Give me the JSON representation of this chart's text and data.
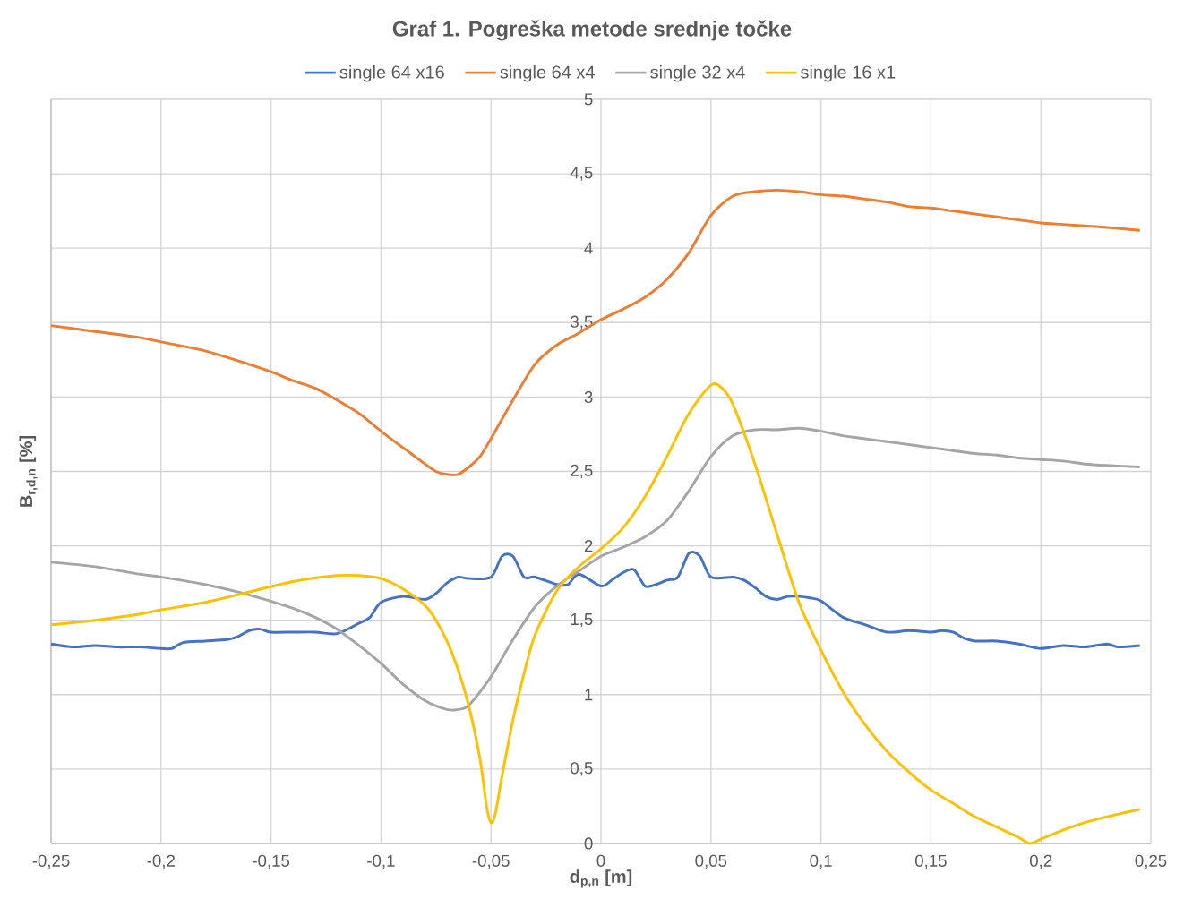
{
  "chart_data": {
    "type": "line",
    "title": "**Graf 1. Pogreška metode srednje točke**",
    "xlabel": "**d$_{p,n}$ [m]**",
    "ylabel": "**B$_{r,d,n}$ [%]**",
    "legend": "top",
    "grid": true,
    "xlim": [
      -0.25,
      0.25
    ],
    "ylim": [
      0,
      5
    ],
    "xticks": [
      {
        "value": -0.25,
        "label": "-0,25"
      },
      {
        "value": -0.2,
        "label": "-0,2"
      },
      {
        "value": -0.15,
        "label": "-0,15"
      },
      {
        "value": -0.1,
        "label": "-0,1"
      },
      {
        "value": -0.05,
        "label": "-0,05"
      },
      0,
      {
        "value": 0.05,
        "label": "0,05"
      },
      {
        "value": 0.1,
        "label": "0,1"
      },
      {
        "value": 0.15,
        "label": "0,15"
      },
      {
        "value": 0.2,
        "label": "0,2"
      },
      {
        "value": 0.25,
        "label": "0,25"
      }
    ],
    "yticks": [
      0,
      {
        "value": 0.5,
        "label": "0,5"
      },
      1,
      {
        "value": 1.5,
        "label": "1,5"
      },
      2,
      {
        "value": 2.5,
        "label": "2,5"
      },
      3,
      {
        "value": 3.5,
        "label": "3,5"
      },
      4,
      {
        "value": 4.5,
        "label": "4,5"
      },
      5
    ],
    "series": [
      {
        "name": "single 64 x16",
        "color": "#4472c4",
        "x": [
          -0.25,
          -0.24,
          -0.23,
          -0.22,
          -0.21,
          -0.2,
          -0.195,
          -0.19,
          -0.18,
          -0.17,
          -0.165,
          -0.16,
          -0.155,
          -0.15,
          -0.14,
          -0.13,
          -0.12,
          -0.11,
          -0.105,
          -0.1,
          -0.09,
          -0.08,
          -0.075,
          -0.07,
          -0.065,
          -0.06,
          -0.05,
          -0.045,
          -0.04,
          -0.035,
          -0.03,
          -0.02,
          -0.015,
          -0.01,
          0,
          0.005,
          0.01,
          0.015,
          0.02,
          0.025,
          0.03,
          0.035,
          0.04,
          0.045,
          0.05,
          0.06,
          0.065,
          0.07,
          0.075,
          0.08,
          0.085,
          0.09,
          0.095,
          0.1,
          0.11,
          0.12,
          0.13,
          0.14,
          0.15,
          0.155,
          0.16,
          0.165,
          0.17,
          0.18,
          0.19,
          0.2,
          0.21,
          0.22,
          0.23,
          0.235,
          0.245
        ],
        "values": [
          1.34,
          1.32,
          1.33,
          1.32,
          1.32,
          1.31,
          1.31,
          1.35,
          1.36,
          1.37,
          1.39,
          1.43,
          1.44,
          1.42,
          1.42,
          1.42,
          1.41,
          1.48,
          1.52,
          1.62,
          1.66,
          1.64,
          1.68,
          1.75,
          1.79,
          1.78,
          1.79,
          1.93,
          1.93,
          1.79,
          1.79,
          1.74,
          1.74,
          1.81,
          1.73,
          1.77,
          1.82,
          1.84,
          1.73,
          1.74,
          1.77,
          1.79,
          1.95,
          1.93,
          1.79,
          1.79,
          1.77,
          1.72,
          1.66,
          1.64,
          1.66,
          1.66,
          1.65,
          1.63,
          1.52,
          1.47,
          1.42,
          1.43,
          1.42,
          1.43,
          1.42,
          1.38,
          1.36,
          1.36,
          1.34,
          1.31,
          1.33,
          1.32,
          1.34,
          1.32,
          1.33
        ]
      },
      {
        "name": "single 64 x4",
        "color": "#ed7d31",
        "x": [
          -0.25,
          -0.23,
          -0.21,
          -0.2,
          -0.18,
          -0.16,
          -0.15,
          -0.14,
          -0.13,
          -0.12,
          -0.11,
          -0.1,
          -0.09,
          -0.08,
          -0.075,
          -0.07,
          -0.065,
          -0.06,
          -0.055,
          -0.05,
          -0.04,
          -0.03,
          -0.02,
          -0.01,
          0,
          0.01,
          0.02,
          0.03,
          0.04,
          0.05,
          0.06,
          0.07,
          0.08,
          0.09,
          0.1,
          0.11,
          0.12,
          0.13,
          0.14,
          0.15,
          0.16,
          0.17,
          0.18,
          0.19,
          0.2,
          0.21,
          0.22,
          0.23,
          0.245
        ],
        "values": [
          3.48,
          3.44,
          3.4,
          3.37,
          3.31,
          3.22,
          3.17,
          3.11,
          3.06,
          2.98,
          2.89,
          2.77,
          2.66,
          2.55,
          2.5,
          2.48,
          2.48,
          2.53,
          2.6,
          2.72,
          2.98,
          3.22,
          3.35,
          3.43,
          3.52,
          3.59,
          3.67,
          3.79,
          3.97,
          4.22,
          4.35,
          4.38,
          4.39,
          4.38,
          4.36,
          4.35,
          4.33,
          4.31,
          4.28,
          4.27,
          4.25,
          4.23,
          4.21,
          4.19,
          4.17,
          4.16,
          4.15,
          4.14,
          4.12
        ]
      },
      {
        "name": "single 32 x4",
        "color": "#a5a5a5",
        "x": [
          -0.25,
          -0.23,
          -0.21,
          -0.2,
          -0.18,
          -0.16,
          -0.14,
          -0.13,
          -0.12,
          -0.11,
          -0.1,
          -0.09,
          -0.08,
          -0.07,
          -0.065,
          -0.06,
          -0.05,
          -0.04,
          -0.03,
          -0.02,
          -0.01,
          0,
          0.01,
          0.02,
          0.03,
          0.04,
          0.05,
          0.06,
          0.07,
          0.08,
          0.09,
          0.1,
          0.11,
          0.12,
          0.13,
          0.14,
          0.15,
          0.16,
          0.17,
          0.18,
          0.19,
          0.2,
          0.21,
          0.22,
          0.23,
          0.245
        ],
        "values": [
          1.89,
          1.86,
          1.81,
          1.79,
          1.74,
          1.67,
          1.58,
          1.52,
          1.44,
          1.33,
          1.21,
          1.07,
          0.96,
          0.9,
          0.9,
          0.93,
          1.12,
          1.37,
          1.59,
          1.73,
          1.83,
          1.93,
          1.99,
          2.06,
          2.17,
          2.37,
          2.6,
          2.74,
          2.78,
          2.78,
          2.79,
          2.77,
          2.74,
          2.72,
          2.7,
          2.68,
          2.66,
          2.64,
          2.62,
          2.61,
          2.59,
          2.58,
          2.57,
          2.55,
          2.54,
          2.53
        ]
      },
      {
        "name": "single 16 x1",
        "color": "#ffc000",
        "x": [
          -0.25,
          -0.23,
          -0.21,
          -0.2,
          -0.18,
          -0.16,
          -0.14,
          -0.12,
          -0.11,
          -0.1,
          -0.09,
          -0.08,
          -0.075,
          -0.07,
          -0.065,
          -0.06,
          -0.055,
          -0.052,
          -0.05,
          -0.048,
          -0.045,
          -0.04,
          -0.035,
          -0.03,
          -0.02,
          -0.01,
          0,
          0.01,
          0.02,
          0.03,
          0.04,
          0.05,
          0.055,
          0.06,
          0.07,
          0.08,
          0.09,
          0.1,
          0.11,
          0.12,
          0.13,
          0.14,
          0.15,
          0.16,
          0.17,
          0.18,
          0.19,
          0.195,
          0.2,
          0.21,
          0.22,
          0.23,
          0.245
        ],
        "values": [
          1.47,
          1.5,
          1.54,
          1.57,
          1.62,
          1.69,
          1.76,
          1.8,
          1.8,
          1.78,
          1.71,
          1.6,
          1.5,
          1.36,
          1.17,
          0.92,
          0.57,
          0.25,
          0.14,
          0.2,
          0.45,
          0.83,
          1.14,
          1.4,
          1.7,
          1.86,
          1.98,
          2.12,
          2.33,
          2.6,
          2.89,
          3.08,
          3.06,
          2.95,
          2.55,
          2.08,
          1.62,
          1.3,
          1.02,
          0.8,
          0.62,
          0.48,
          0.36,
          0.27,
          0.18,
          0.11,
          0.04,
          0.0,
          0.03,
          0.09,
          0.14,
          0.18,
          0.23
        ]
      }
    ]
  }
}
